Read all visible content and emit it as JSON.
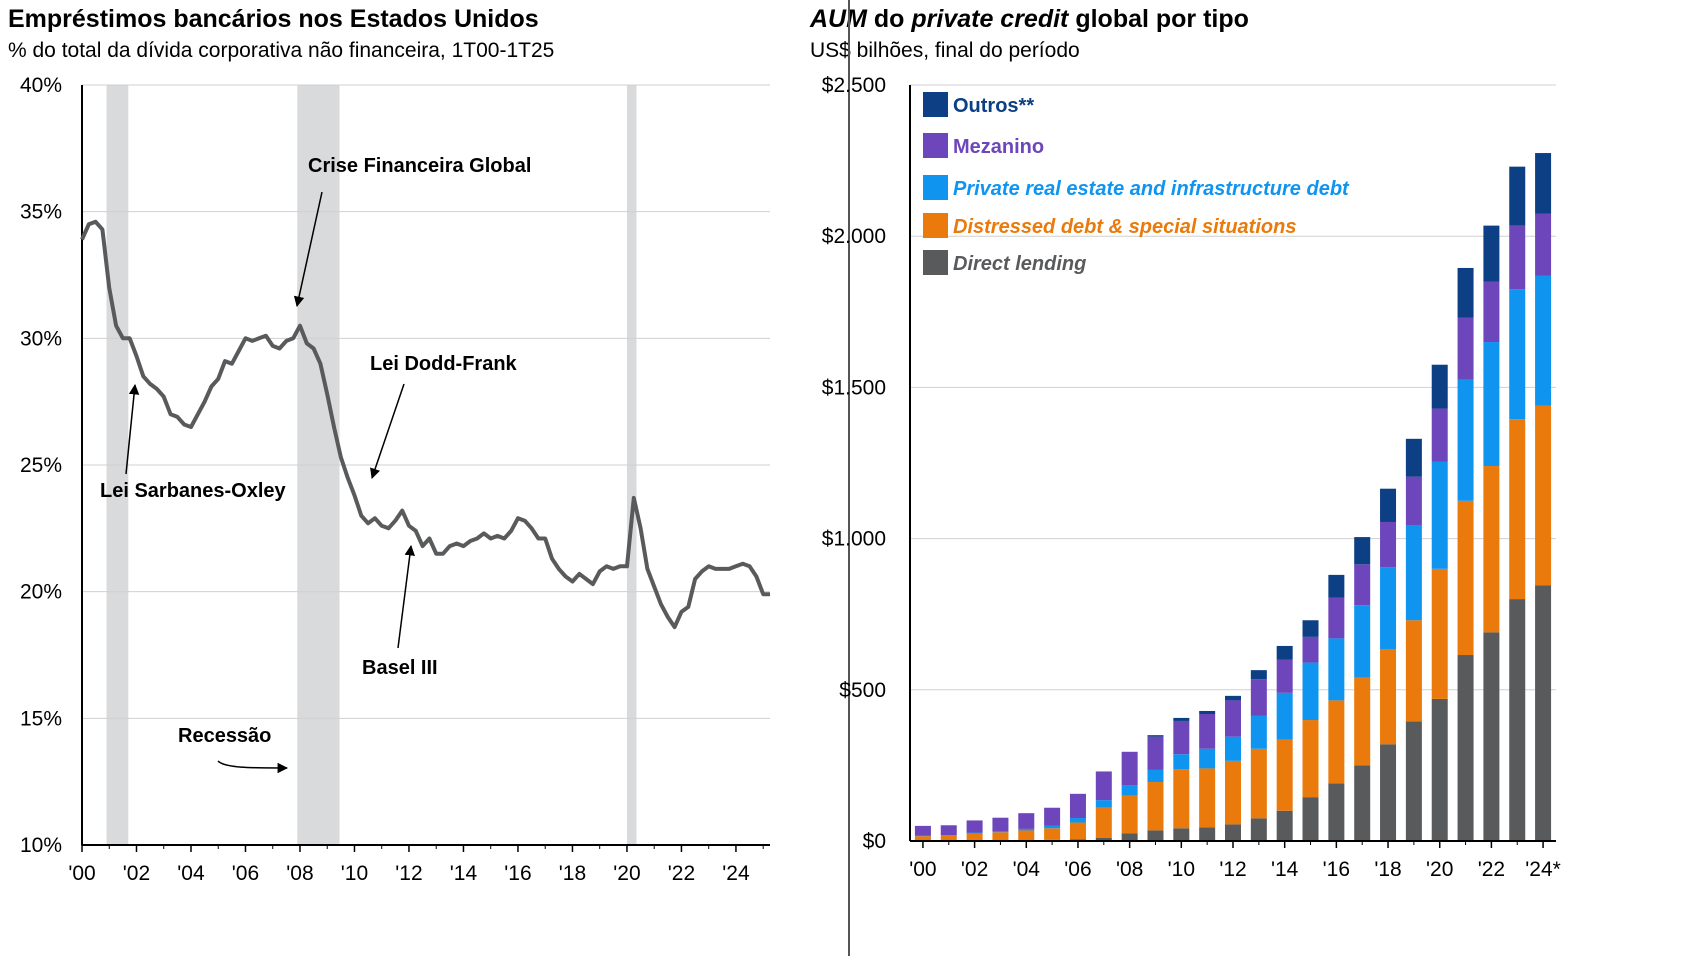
{
  "colors": {
    "line": "#595a5c",
    "recession": "#d9dadb",
    "grid": "#d0d0d0",
    "direct_lending": "#595a5c",
    "distressed": "#e97a0b",
    "real_estate_infra": "#0f94f0",
    "mezzanine": "#6d46bb",
    "others": "#0d3f84"
  },
  "chart_data": [
    {
      "type": "line",
      "title": "Empréstimos bancários nos Estados Unidos",
      "subtitle": "% do total da dívida corporativa não financeira, 1T00-1T25",
      "y_tick_labels": [
        "40%",
        "35%",
        "30%",
        "25%",
        "20%",
        "15%",
        "10%"
      ],
      "y_ticks": [
        40,
        35,
        30,
        25,
        20,
        15,
        10
      ],
      "ylim": [
        10,
        40
      ],
      "x_tick_labels": [
        "'00",
        "'02",
        "'04",
        "'06",
        "'08",
        "'10",
        "'12",
        "'14",
        "'16",
        "'18",
        "'20",
        "'22",
        "'24"
      ],
      "x_ticks": [
        2000,
        2002,
        2004,
        2006,
        2008,
        2010,
        2012,
        2014,
        2016,
        2018,
        2020,
        2022,
        2024
      ],
      "xlim": [
        2000,
        2025.25
      ],
      "grid": true,
      "recessions": [
        [
          2000.9,
          2001.7
        ],
        [
          2007.9,
          2009.45
        ],
        [
          2020.0,
          2020.35
        ]
      ],
      "annotations": [
        {
          "text": "Crise Financeira Global"
        },
        {
          "text": "Lei Dodd-Frank"
        },
        {
          "text": "Lei Sarbanes-Oxley"
        },
        {
          "text": "Basel III"
        },
        {
          "text": "Recessão"
        }
      ],
      "series": [
        {
          "x": [
            2000.0,
            2000.25,
            2000.5,
            2000.75,
            2001.0,
            2001.25,
            2001.5,
            2001.75,
            2002.0,
            2002.25,
            2002.5,
            2002.75,
            2003.0,
            2003.25,
            2003.5,
            2003.75,
            2004.0,
            2004.25,
            2004.5,
            2004.75,
            2005.0,
            2005.25,
            2005.5,
            2005.75,
            2006.0,
            2006.25,
            2006.5,
            2006.75,
            2007.0,
            2007.25,
            2007.5,
            2007.75,
            2008.0,
            2008.25,
            2008.5,
            2008.75,
            2009.0,
            2009.25,
            2009.5,
            2009.75,
            2010.0,
            2010.25,
            2010.5,
            2010.75,
            2011.0,
            2011.25,
            2011.5,
            2011.75,
            2012.0,
            2012.25,
            2012.5,
            2012.75,
            2013.0,
            2013.25,
            2013.5,
            2013.75,
            2014.0,
            2014.25,
            2014.5,
            2014.75,
            2015.0,
            2015.25,
            2015.5,
            2015.75,
            2016.0,
            2016.25,
            2016.5,
            2016.75,
            2017.0,
            2017.25,
            2017.5,
            2017.75,
            2018.0,
            2018.25,
            2018.5,
            2018.75,
            2019.0,
            2019.25,
            2019.5,
            2019.75,
            2020.0,
            2020.25,
            2020.5,
            2020.75,
            2021.0,
            2021.25,
            2021.5,
            2021.75,
            2022.0,
            2022.25,
            2022.5,
            2022.75,
            2023.0,
            2023.25,
            2023.5,
            2023.75,
            2024.0,
            2024.25,
            2024.5,
            2024.75,
            2025.0,
            2025.25
          ],
          "y": [
            33.9,
            34.5,
            34.6,
            34.3,
            32.0,
            30.5,
            30.0,
            30.0,
            29.3,
            28.5,
            28.2,
            28.0,
            27.7,
            27.0,
            26.9,
            26.6,
            26.5,
            27.0,
            27.5,
            28.1,
            28.4,
            29.1,
            29.0,
            29.5,
            30.0,
            29.9,
            30.0,
            30.1,
            29.7,
            29.6,
            29.9,
            30.0,
            30.5,
            29.8,
            29.6,
            29.0,
            27.8,
            26.5,
            25.3,
            24.5,
            23.8,
            23.0,
            22.7,
            22.9,
            22.6,
            22.5,
            22.8,
            23.2,
            22.6,
            22.4,
            21.8,
            22.1,
            21.5,
            21.5,
            21.8,
            21.9,
            21.8,
            22.0,
            22.1,
            22.3,
            22.1,
            22.2,
            22.1,
            22.4,
            22.9,
            22.8,
            22.5,
            22.1,
            22.1,
            21.3,
            20.9,
            20.6,
            20.4,
            20.7,
            20.5,
            20.3,
            20.8,
            21.0,
            20.9,
            21.0,
            21.0,
            23.7,
            22.5,
            20.9,
            20.2,
            19.5,
            19.0,
            18.6,
            19.2,
            19.4,
            20.5,
            20.8,
            21.0,
            20.9,
            20.9,
            20.9,
            21.0,
            21.1,
            21.0,
            20.6,
            19.9,
            19.9
          ]
        }
      ]
    },
    {
      "type": "bar",
      "stacked": true,
      "title_parts": [
        {
          "text": "AUM",
          "italic": true
        },
        {
          "text": " do ",
          "italic": false
        },
        {
          "text": "private credit",
          "italic": true
        },
        {
          "text": " global por tipo",
          "italic": false
        }
      ],
      "subtitle": "US$ bilhões, final do período",
      "y_tick_labels": [
        "$2.500",
        "$2.000",
        "$1.500",
        "$1.000",
        "$500",
        "$0"
      ],
      "y_ticks": [
        2500,
        2000,
        1500,
        1000,
        500,
        0
      ],
      "ylim": [
        0,
        2500
      ],
      "x_tick_labels": [
        "'00",
        "'02",
        "'04",
        "'06",
        "'08",
        "'10",
        "'12",
        "'14",
        "'16",
        "'18",
        "'20",
        "'22",
        "'24*"
      ],
      "categories": [
        "2000",
        "2001",
        "2002",
        "2003",
        "2004",
        "2005",
        "2006",
        "2007",
        "2008",
        "2009",
        "2010",
        "2011",
        "2012",
        "2013",
        "2014",
        "2015",
        "2016",
        "2017",
        "2018",
        "2019",
        "2020",
        "2021",
        "2022",
        "2023",
        "2024*"
      ],
      "legend": [
        "Outros**",
        "Mezanino",
        "Private real estate and infrastructure debt",
        "Distressed debt & special situations",
        "Direct lending"
      ],
      "legend_position": "top-left",
      "series": [
        {
          "name": "Direct lending",
          "color_key": "direct_lending",
          "values": [
            2,
            2,
            3,
            3,
            3,
            4,
            6,
            10,
            25,
            35,
            42,
            45,
            55,
            75,
            100,
            145,
            190,
            250,
            320,
            395,
            470,
            615,
            690,
            800,
            845
          ]
        },
        {
          "name": "Distressed debt & special situations",
          "color_key": "distressed",
          "values": [
            14,
            15,
            22,
            26,
            32,
            38,
            55,
            100,
            125,
            160,
            195,
            195,
            210,
            230,
            235,
            255,
            275,
            290,
            315,
            335,
            430,
            510,
            550,
            595,
            595
          ]
        },
        {
          "name": "Private real estate and infrastructure debt",
          "color_key": "real_estate_infra",
          "values": [
            2,
            2,
            3,
            4,
            5,
            8,
            15,
            25,
            35,
            40,
            50,
            65,
            80,
            110,
            155,
            190,
            205,
            240,
            270,
            315,
            355,
            400,
            410,
            430,
            430
          ]
        },
        {
          "name": "Mezanino",
          "color_key": "mezzanine",
          "values": [
            32,
            33,
            40,
            44,
            52,
            60,
            80,
            95,
            110,
            110,
            110,
            115,
            120,
            120,
            110,
            85,
            135,
            135,
            150,
            160,
            175,
            205,
            200,
            210,
            205
          ]
        },
        {
          "name": "Outros**",
          "color_key": "others",
          "values": [
            0,
            0,
            0,
            0,
            0,
            0,
            0,
            0,
            0,
            5,
            10,
            10,
            15,
            30,
            45,
            55,
            75,
            90,
            110,
            125,
            145,
            165,
            185,
            195,
            200
          ]
        }
      ]
    }
  ]
}
